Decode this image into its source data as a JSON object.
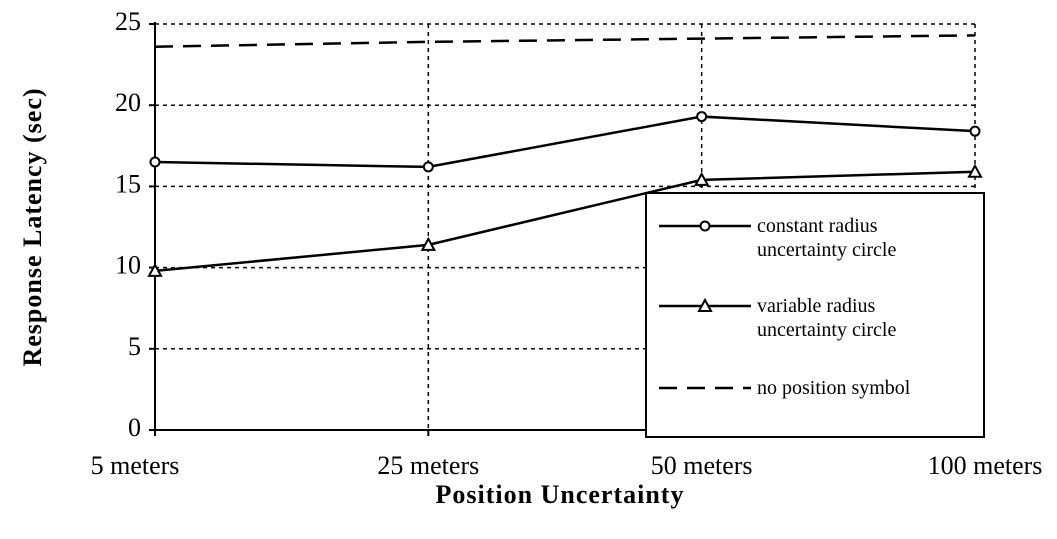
{
  "chart_data": {
    "type": "line",
    "xlabel": "Position Uncertainty",
    "ylabel": "Response Latency (sec)",
    "categories": [
      "5 meters",
      "25 meters",
      "50 meters",
      "100 meters"
    ],
    "series": [
      {
        "name": "constant radius uncertainty circle",
        "color": "#000000",
        "marker": "circle",
        "dash": "solid",
        "values": [
          16.5,
          16.2,
          19.3,
          18.4
        ]
      },
      {
        "name": "variable radius uncertainty circle",
        "color": "#000000",
        "marker": "triangle",
        "dash": "solid",
        "values": [
          9.8,
          11.4,
          15.4,
          15.9
        ]
      },
      {
        "name": "no position symbol",
        "color": "#000000",
        "marker": "none",
        "dash": "dashed",
        "values": [
          23.6,
          23.9,
          24.1,
          24.3
        ]
      }
    ],
    "ylim": [
      0,
      25
    ],
    "yticks": [
      0,
      5,
      10,
      15,
      20,
      25
    ],
    "grid": true,
    "legend": "lower right"
  }
}
